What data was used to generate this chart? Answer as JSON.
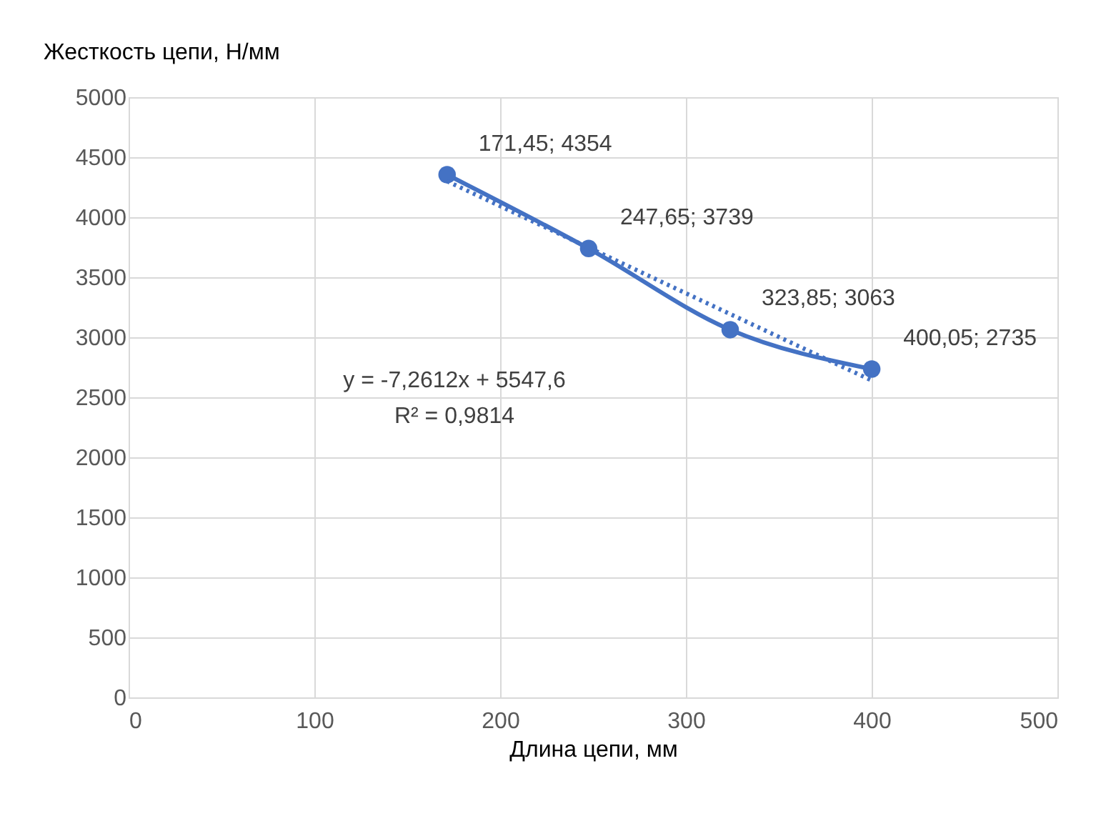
{
  "chart_data": {
    "type": "line",
    "ylabel": "Жесткость цепи, Н/мм",
    "xlabel": "Длина цепи, мм",
    "x": [
      171.45,
      247.65,
      323.85,
      400.05
    ],
    "series": [
      {
        "color": "#4472c4",
        "values": [
          4354,
          3739,
          3063,
          2735
        ],
        "value_labels": [
          "171,45; 4354",
          "247,65; 3739",
          "323,85; 3063",
          "400,05; 2735"
        ],
        "marker": "circle",
        "line_style": "solid"
      },
      {
        "color": "#4472c4",
        "x": [
          171.45,
          400.05
        ],
        "values": [
          4300,
          2640
        ],
        "marker": "none",
        "line_style": "dotted"
      }
    ],
    "annotations": [
      "y = -7,2612x + 5547,6",
      "R² = 0,9814"
    ],
    "xlim": [
      0,
      500
    ],
    "xticks": [
      0,
      100,
      200,
      300,
      400,
      500
    ],
    "ylim": [
      0,
      5000
    ],
    "yticks": [
      0,
      500,
      1000,
      1500,
      2000,
      2500,
      3000,
      3500,
      4000,
      4500,
      5000
    ],
    "grid": true
  }
}
